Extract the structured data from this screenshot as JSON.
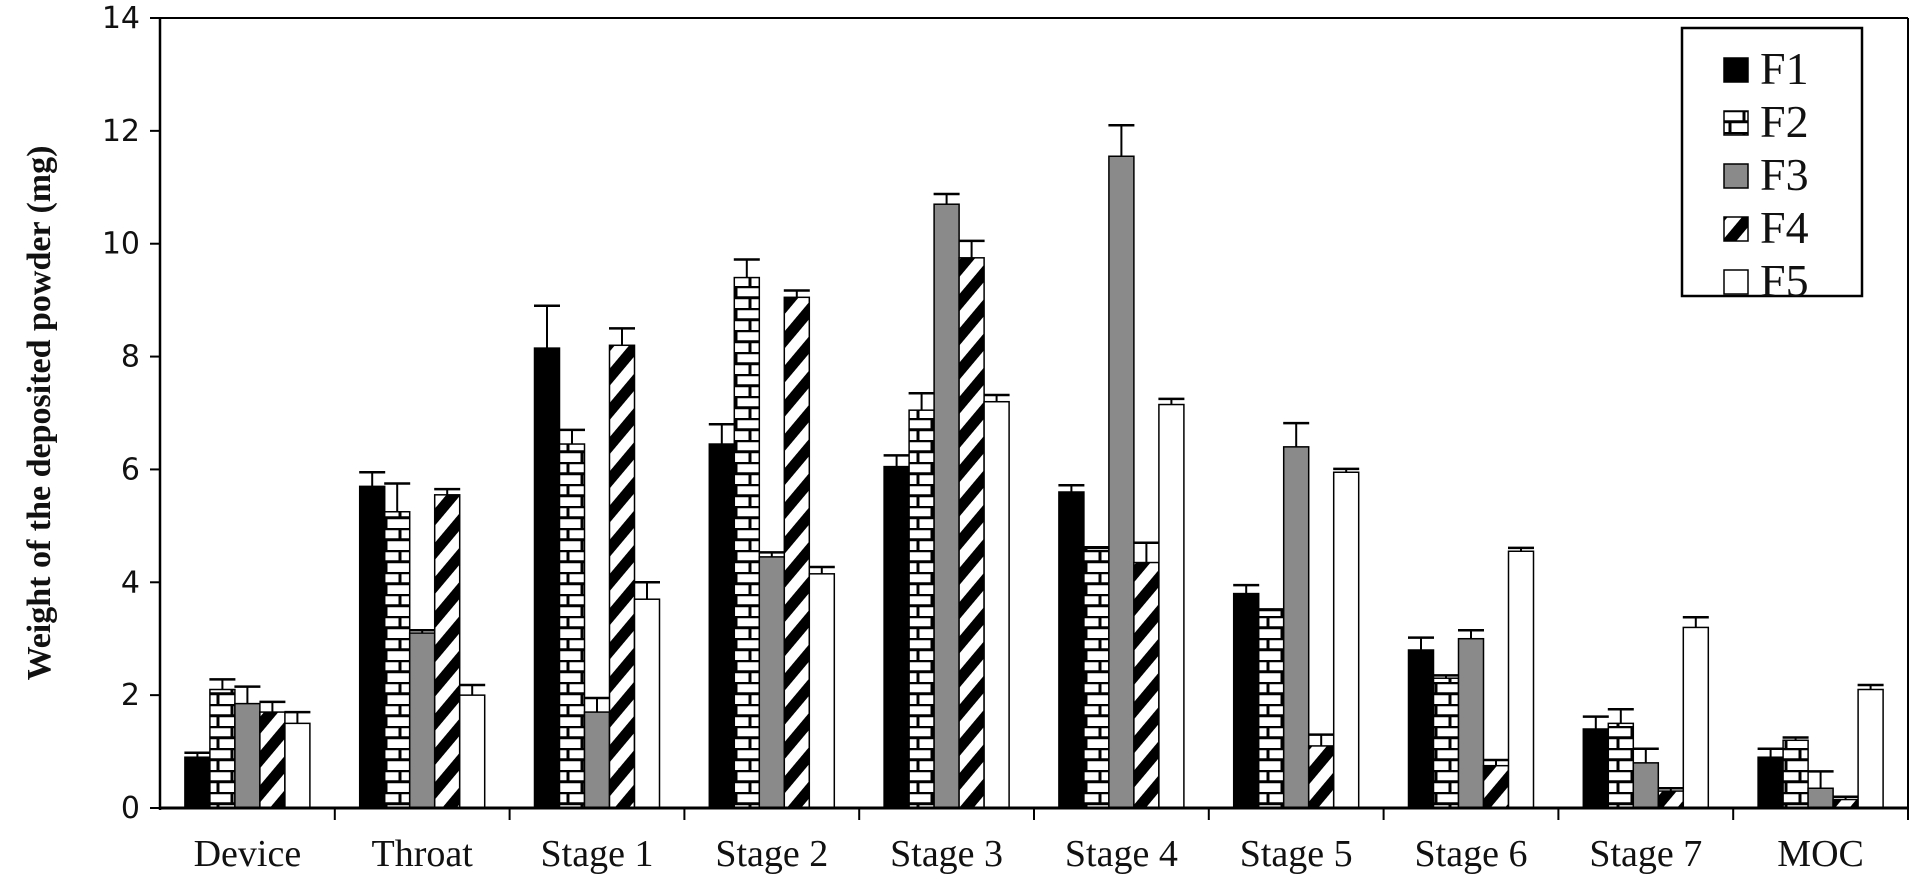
{
  "chart_data": {
    "type": "bar",
    "title": "",
    "xlabel": "",
    "ylabel": "Weight of the deposited powder (mg)",
    "ylim": [
      0,
      14
    ],
    "yticks": [
      0,
      2,
      4,
      6,
      8,
      10,
      12,
      14
    ],
    "grid": false,
    "legend_position": "top-right",
    "categories": [
      "Device",
      "Throat",
      "Stage 1",
      "Stage 2",
      "Stage 3",
      "Stage 4",
      "Stage 5",
      "Stage 6",
      "Stage 7",
      "MOC"
    ],
    "series": [
      {
        "name": "F1",
        "pattern": "solid-black",
        "values": [
          0.9,
          5.7,
          8.15,
          6.45,
          6.05,
          5.6,
          3.8,
          2.8,
          1.4,
          0.9
        ],
        "errors": [
          0.08,
          0.25,
          0.75,
          0.35,
          0.2,
          0.12,
          0.15,
          0.22,
          0.22,
          0.15
        ]
      },
      {
        "name": "F2",
        "pattern": "brick",
        "values": [
          2.1,
          5.25,
          6.45,
          9.4,
          7.05,
          4.6,
          3.5,
          2.3,
          1.5,
          1.2
        ],
        "errors": [
          0.18,
          0.5,
          0.25,
          0.32,
          0.3,
          0.02,
          0.02,
          0.05,
          0.25,
          0.05
        ]
      },
      {
        "name": "F3",
        "pattern": "solid-gray",
        "values": [
          1.85,
          3.1,
          1.7,
          4.45,
          10.7,
          11.55,
          6.4,
          3.0,
          0.8,
          0.35
        ],
        "errors": [
          0.3,
          0.05,
          0.25,
          0.08,
          0.18,
          0.55,
          0.42,
          0.15,
          0.25,
          0.3
        ]
      },
      {
        "name": "F4",
        "pattern": "diagonal-stripes",
        "values": [
          1.7,
          5.55,
          8.2,
          9.05,
          9.75,
          4.35,
          1.1,
          0.75,
          0.3,
          0.15
        ],
        "errors": [
          0.18,
          0.1,
          0.3,
          0.12,
          0.3,
          0.35,
          0.2,
          0.1,
          0.05,
          0.05
        ]
      },
      {
        "name": "F5",
        "pattern": "white",
        "values": [
          1.5,
          2.0,
          3.7,
          4.15,
          7.2,
          7.15,
          5.95,
          4.55,
          3.2,
          2.1
        ],
        "errors": [
          0.2,
          0.18,
          0.3,
          0.12,
          0.12,
          0.1,
          0.06,
          0.06,
          0.18,
          0.08
        ]
      }
    ]
  }
}
